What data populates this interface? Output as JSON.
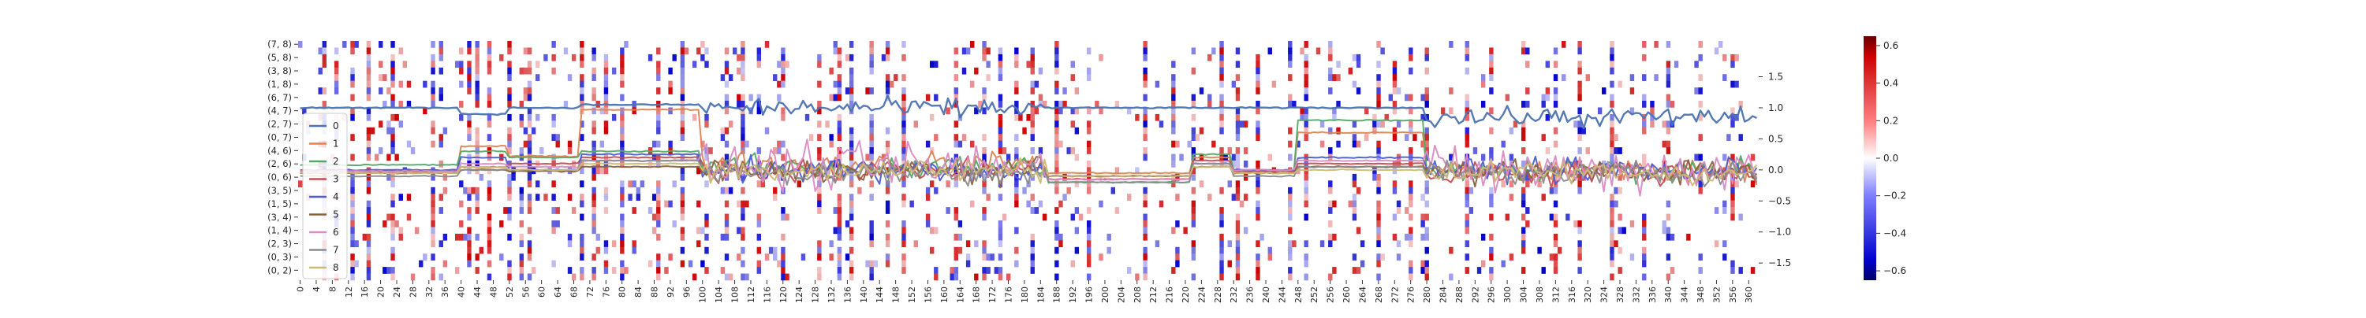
{
  "chart_data": {
    "type": "heatmap",
    "title": "",
    "xlabel": "",
    "ylabel": "",
    "heatmap": {
      "columns": 363,
      "x_tick_step": 4,
      "x_tick_labels": [
        "0",
        "4",
        "8",
        "12",
        "16",
        "20",
        "24",
        "28",
        "32",
        "36",
        "40",
        "44",
        "48",
        "52",
        "56",
        "60",
        "64",
        "68",
        "72",
        "76",
        "80",
        "84",
        "88",
        "92",
        "96",
        "100",
        "104",
        "108",
        "112",
        "116",
        "120",
        "124",
        "128",
        "132",
        "136",
        "140",
        "144",
        "148",
        "152",
        "156",
        "160",
        "164",
        "168",
        "172",
        "176",
        "180",
        "184",
        "188",
        "192",
        "196",
        "200",
        "204",
        "208",
        "212",
        "216",
        "220",
        "224",
        "228",
        "232",
        "236",
        "240",
        "244",
        "248",
        "252",
        "256",
        "260",
        "264",
        "268",
        "272",
        "276",
        "280",
        "284",
        "288",
        "292",
        "296",
        "300",
        "304",
        "308",
        "312",
        "316",
        "320",
        "324",
        "328",
        "332",
        "336",
        "340",
        "344",
        "348",
        "352",
        "356",
        "360"
      ],
      "row_count": 36,
      "y_tick_labels": [
        "(7, 8)",
        "(5, 8)",
        "(3, 8)",
        "(1, 8)",
        "(6, 7)",
        "(4, 7)",
        "(2, 7)",
        "(0, 7)",
        "(4, 6)",
        "(2, 6)",
        "(0, 6)",
        "(3, 5)",
        "(1, 5)",
        "(3, 4)",
        "(1, 4)",
        "(2, 3)",
        "(0, 3)",
        "(0, 2)"
      ],
      "y_tick_rows": [
        0,
        2,
        4,
        6,
        8,
        10,
        12,
        14,
        16,
        18,
        20,
        22,
        24,
        26,
        28,
        30,
        32,
        34
      ],
      "color_range": [
        -0.65,
        0.65
      ],
      "colorbar_ticks": [
        "0.6",
        "0.4",
        "0.2",
        "0.0",
        "−0.2",
        "−0.4",
        "−0.6"
      ],
      "colorbar_tick_values": [
        0.6,
        0.4,
        0.2,
        0.0,
        -0.2,
        -0.4,
        -0.6
      ],
      "colors": {
        "negative": "#0000cc",
        "neutral": "#ffffff",
        "positive": "#cc0000"
      }
    },
    "right_axis": {
      "ylim": [
        -1.65,
        1.95
      ],
      "tick_labels": [
        "1.5",
        "1.0",
        "0.5",
        "0.0",
        "−0.5",
        "−1.0",
        "−1.5"
      ],
      "tick_values": [
        1.5,
        1.0,
        0.5,
        0.0,
        -0.5,
        -1.0,
        -1.5
      ]
    },
    "regime_breaks": [
      0,
      40,
      52,
      70,
      100,
      186,
      222,
      232,
      248,
      280,
      363
    ],
    "series": [
      {
        "name": "0",
        "color": "#4c72b0",
        "levels": [
          1.0,
          0.9,
          1.0,
          1.05,
          1.0,
          1.0,
          1.0,
          1.0,
          1.0,
          0.85
        ]
      },
      {
        "name": "1",
        "color": "#dd8452",
        "levels": [
          -0.02,
          0.38,
          0.22,
          0.97,
          0.1,
          -0.05,
          0.2,
          -0.02,
          0.6,
          0.0
        ]
      },
      {
        "name": "2",
        "color": "#55a868",
        "levels": [
          0.08,
          0.3,
          0.2,
          0.3,
          0.05,
          -0.2,
          0.25,
          0.0,
          0.8,
          0.0
        ]
      },
      {
        "name": "3",
        "color": "#c44e52",
        "levels": [
          -0.02,
          0.05,
          0.1,
          0.2,
          0.0,
          -0.15,
          0.15,
          -0.02,
          0.1,
          -0.05
        ]
      },
      {
        "name": "4",
        "color": "#4c5cd4",
        "levels": [
          0.0,
          0.2,
          0.0,
          0.25,
          0.0,
          -0.1,
          0.1,
          0.0,
          0.2,
          0.0
        ]
      },
      {
        "name": "5",
        "color": "#8c613c",
        "levels": [
          -0.05,
          0.0,
          -0.02,
          0.05,
          -0.02,
          -0.1,
          0.05,
          -0.05,
          0.05,
          -0.02
        ]
      },
      {
        "name": "6",
        "color": "#da8bc3",
        "levels": [
          -0.02,
          0.1,
          0.05,
          0.15,
          0.05,
          -0.15,
          0.1,
          0.0,
          0.15,
          0.0
        ]
      },
      {
        "name": "7",
        "color": "#8c8c8c",
        "levels": [
          -0.1,
          0.0,
          0.0,
          0.15,
          -0.05,
          -0.2,
          0.1,
          -0.1,
          0.05,
          -0.05
        ]
      },
      {
        "name": "8",
        "color": "#ccb974",
        "levels": [
          -0.05,
          0.05,
          0.0,
          0.1,
          0.0,
          -0.1,
          0.05,
          -0.05,
          0.0,
          -0.05
        ]
      }
    ],
    "legend": {
      "position": "left",
      "entries": [
        "0",
        "1",
        "2",
        "3",
        "4",
        "5",
        "6",
        "7",
        "8"
      ]
    },
    "grid": false
  }
}
